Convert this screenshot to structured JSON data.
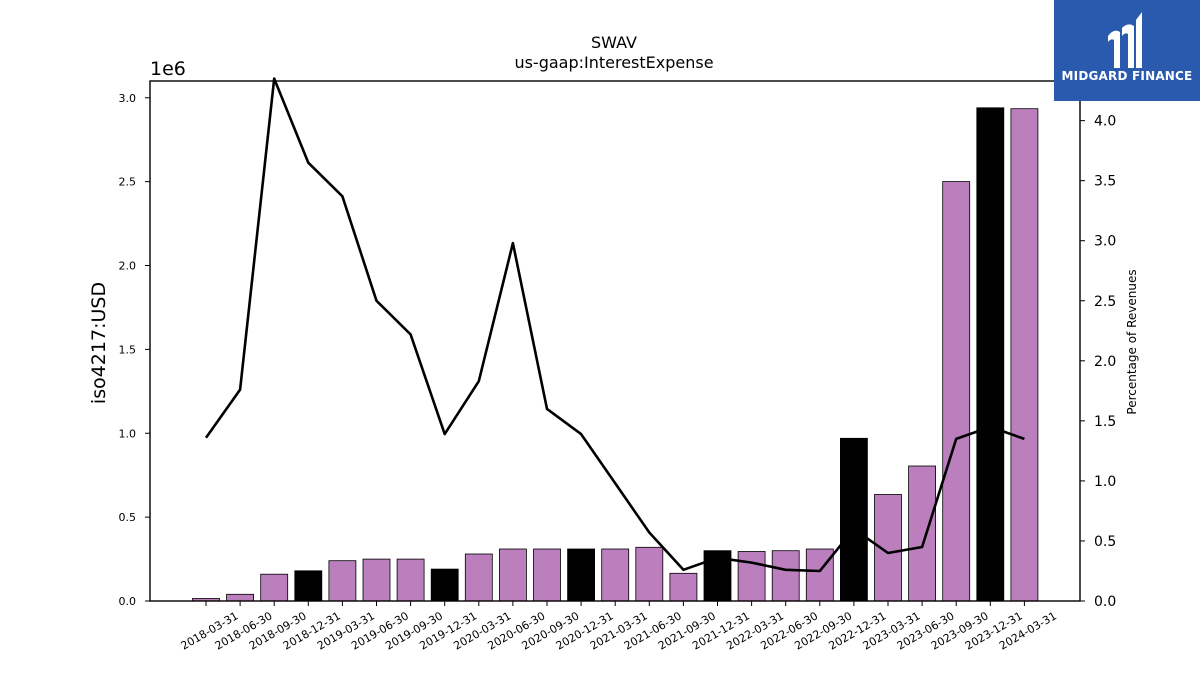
{
  "logo": {
    "brand": "MIDGARD FINANCE",
    "icon": "midgard-logo-icon",
    "background": "#2a5aae"
  },
  "chart_data": {
    "type": "bar",
    "title": "SWAV",
    "subtitle": "us-gaap:InterestExpense",
    "ylabel": "iso4217:USD",
    "y_offset_label": "1e6",
    "y2label": "Percentage of Revenues",
    "ylim": [
      0,
      3.1
    ],
    "y_ticks": [
      0.0,
      0.5,
      1.0,
      1.5,
      2.0,
      2.5,
      3.0
    ],
    "y2lim": [
      0,
      4.33
    ],
    "y2_ticks": [
      0.0,
      0.5,
      1.0,
      1.5,
      2.0,
      2.5,
      3.0,
      3.5,
      4.0
    ],
    "grid": false,
    "colors": {
      "quarter": "#bc7fbd",
      "year_end": "#000000",
      "line": "#000000"
    },
    "categories": [
      "2018-03-31",
      "2018-06-30",
      "2018-09-30",
      "2018-12-31",
      "2019-03-31",
      "2019-06-30",
      "2019-09-30",
      "2019-12-31",
      "2020-03-31",
      "2020-06-30",
      "2020-09-30",
      "2020-12-31",
      "2021-03-31",
      "2021-06-30",
      "2021-09-30",
      "2021-12-31",
      "2022-03-31",
      "2022-06-30",
      "2022-09-30",
      "2022-12-31",
      "2023-03-31",
      "2023-06-30",
      "2023-09-30",
      "2023-12-31",
      "2024-03-31"
    ],
    "series": [
      {
        "values": [
          0.015,
          0.04,
          0.16,
          0.18,
          0.24,
          0.25,
          0.25,
          0.19,
          0.28,
          0.31,
          0.31,
          0.31,
          0.31,
          0.32,
          0.165,
          0.3,
          0.295,
          0.3,
          0.31,
          0.97,
          0.635,
          0.805,
          2.5,
          2.94,
          2.935
        ],
        "year_end": [
          false,
          false,
          false,
          true,
          false,
          false,
          false,
          true,
          false,
          false,
          false,
          true,
          false,
          false,
          false,
          true,
          false,
          false,
          false,
          true,
          false,
          false,
          false,
          true,
          false
        ]
      },
      {
        "type": "line",
        "axis": "right",
        "values": [
          1.36,
          1.76,
          4.35,
          3.65,
          3.37,
          2.5,
          2.22,
          1.39,
          1.83,
          2.98,
          1.6,
          1.39,
          0.98,
          0.57,
          0.26,
          0.36,
          0.32,
          0.26,
          0.25,
          0.6,
          0.4,
          0.45,
          1.35,
          1.45,
          1.35
        ]
      }
    ]
  }
}
